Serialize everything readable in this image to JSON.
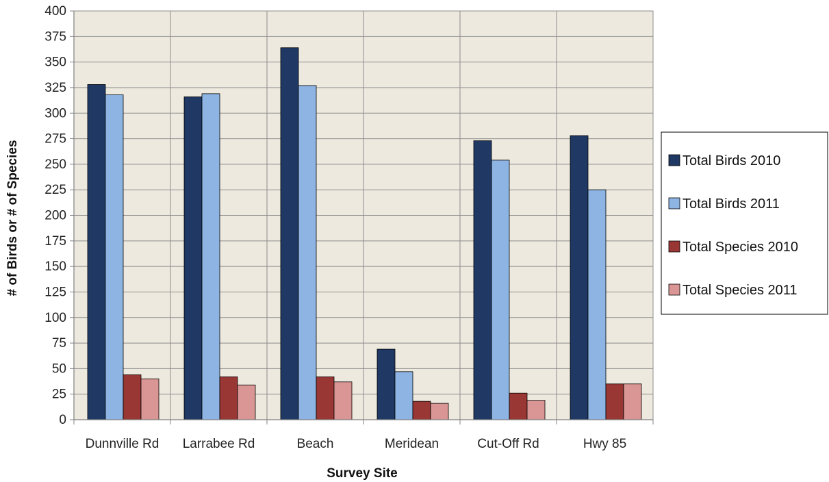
{
  "chart_data": {
    "type": "bar",
    "xlabel": "Survey Site",
    "ylabel": "# of Birds or # of Species",
    "ylim": [
      0,
      400
    ],
    "ytick_step": 25,
    "grid": true,
    "legend_position": "right",
    "plot_background": "#EDE9DE",
    "categories": [
      "Dunnville Rd",
      "Larrabee Rd",
      "Beach",
      "Meridean",
      "Cut-Off Rd",
      "Hwy 85"
    ],
    "series": [
      {
        "name": "Total Birds 2010",
        "color": "#1F3864",
        "values": [
          328,
          316,
          364,
          69,
          273,
          278
        ]
      },
      {
        "name": "Total Birds 2011",
        "color": "#8EB4E3",
        "values": [
          318,
          319,
          327,
          47,
          254,
          225
        ]
      },
      {
        "name": "Total Species 2010",
        "color": "#993735",
        "values": [
          44,
          42,
          42,
          18,
          26,
          35
        ]
      },
      {
        "name": "Total Species 2011",
        "color": "#D99694",
        "values": [
          40,
          34,
          37,
          16,
          19,
          35
        ]
      }
    ]
  }
}
